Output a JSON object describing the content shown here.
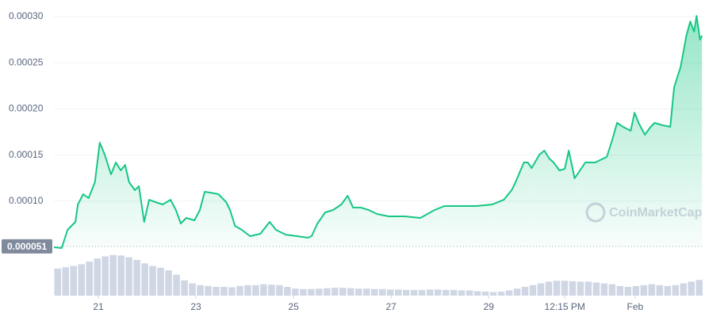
{
  "chart_data": {
    "type": "line",
    "series": [
      {
        "name": "Price",
        "color": "#16c784",
        "x": [
          20.09,
          20.25,
          20.37,
          20.53,
          20.58,
          20.69,
          20.8,
          20.93,
          21.03,
          21.13,
          21.26,
          21.36,
          21.46,
          21.55,
          21.63,
          21.75,
          21.83,
          21.94,
          22.04,
          22.17,
          22.32,
          22.48,
          22.59,
          22.69,
          22.8,
          22.97,
          23.08,
          23.18,
          23.29,
          23.46,
          23.62,
          23.7,
          23.8,
          23.94,
          24.11,
          24.32,
          24.51,
          24.64,
          24.84,
          25.08,
          25.29,
          25.37,
          25.49,
          25.65,
          25.81,
          25.98,
          26.11,
          26.22,
          26.38,
          26.54,
          26.71,
          26.95,
          27.28,
          27.6,
          27.89,
          28.09,
          28.41,
          28.74,
          29.07,
          29.31,
          29.47,
          29.55,
          29.72,
          29.8,
          29.88,
          30.04,
          30.14,
          30.24,
          30.33,
          30.45,
          30.56,
          30.64,
          30.76,
          30.98,
          31.18,
          31.42,
          31.54,
          31.63,
          31.75,
          31.91,
          31.99,
          32.07,
          32.2,
          32.32,
          32.4,
          32.56,
          32.72,
          32.8,
          32.93,
          33.0,
          33.05,
          33.13,
          33.21,
          33.26,
          33.33,
          33.37
        ],
        "values": [
          5e-05,
          4.91e-05,
          6.89e-05,
          7.75e-05,
          9.64e-05,
          0.0001076,
          0.0001033,
          0.0001205,
          0.0001634,
          0.0001505,
          0.000129,
          0.0001419,
          0.0001333,
          0.0001393,
          0.0001205,
          0.0001119,
          0.0001162,
          7.75e-05,
          0.0001015,
          9.9e-05,
          9.64e-05,
          0.0001015,
          9.04e-05,
          7.58e-05,
          8.18e-05,
          7.92e-05,
          9.04e-05,
          0.0001101,
          0.0001093,
          0.0001076,
          9.9e-05,
          9.04e-05,
          7.32e-05,
          6.89e-05,
          6.2e-05,
          6.46e-05,
          7.75e-05,
          6.89e-05,
          6.37e-05,
          6.2e-05,
          6.03e-05,
          6.2e-05,
          7.58e-05,
          8.78e-05,
          9.04e-05,
          9.64e-05,
          0.0001058,
          9.3e-05,
          9.3e-05,
          9.04e-05,
          8.61e-05,
          8.35e-05,
          8.35e-05,
          8.18e-05,
          9.04e-05,
          9.47e-05,
          9.47e-05,
          9.47e-05,
          9.64e-05,
          0.0001015,
          0.0001119,
          0.0001205,
          0.0001419,
          0.0001419,
          0.0001359,
          0.0001505,
          0.0001548,
          0.0001462,
          0.0001419,
          0.0001333,
          0.000135,
          0.0001548,
          0.0001247,
          0.0001419,
          0.0001419,
          0.0001479,
          0.0001677,
          0.0001849,
          0.0001806,
          0.0001763,
          0.000196,
          0.0001849,
          0.000172,
          0.0001806,
          0.0001849,
          0.0001823,
          0.0001806,
          0.0002235,
          0.000245,
          0.0002648,
          0.0002794,
          0.0002948,
          0.0002837,
          0.0003009,
          0.0002751,
          0.0002794
        ]
      }
    ],
    "volume": {
      "color": "#cfd6e4",
      "ylim": [
        0,
        100
      ],
      "values": [
        62,
        65,
        68,
        72,
        78,
        85,
        90,
        93,
        92,
        88,
        82,
        74,
        68,
        64,
        58,
        48,
        35,
        28,
        24,
        22,
        20,
        20,
        19,
        22,
        24,
        24,
        26,
        25,
        24,
        20,
        16,
        15,
        15,
        16,
        17,
        18,
        18,
        17,
        16,
        16,
        15,
        15,
        14,
        14,
        13,
        13,
        13,
        14,
        14,
        13,
        13,
        12,
        12,
        10,
        9,
        8,
        9,
        12,
        16,
        20,
        24,
        28,
        32,
        34,
        34,
        33,
        32,
        32,
        30,
        28,
        26,
        22,
        20,
        22,
        24,
        26,
        24,
        22,
        24,
        28,
        32,
        36
      ]
    },
    "reference": {
      "value": 5.1e-05,
      "label": "0.000051"
    },
    "xlim": [
      20.09,
      33.4
    ],
    "xticks": [
      21,
      23,
      25,
      27,
      29,
      {
        "value": 30.56,
        "label": "12:15 PM"
      },
      {
        "value": 32,
        "label": "Feb"
      }
    ],
    "ylim": [
      5e-05,
      0.0003
    ],
    "yticks": [
      {
        "value": 0.0001,
        "label": "0.00010"
      },
      {
        "value": 0.00015,
        "label": "0.00015"
      },
      {
        "value": 0.0002,
        "label": "0.00020"
      },
      {
        "value": 0.00025,
        "label": "0.00025"
      },
      {
        "value": 0.0003,
        "label": "0.00030"
      }
    ],
    "grid": true,
    "watermark": "CoinMarketCap"
  }
}
